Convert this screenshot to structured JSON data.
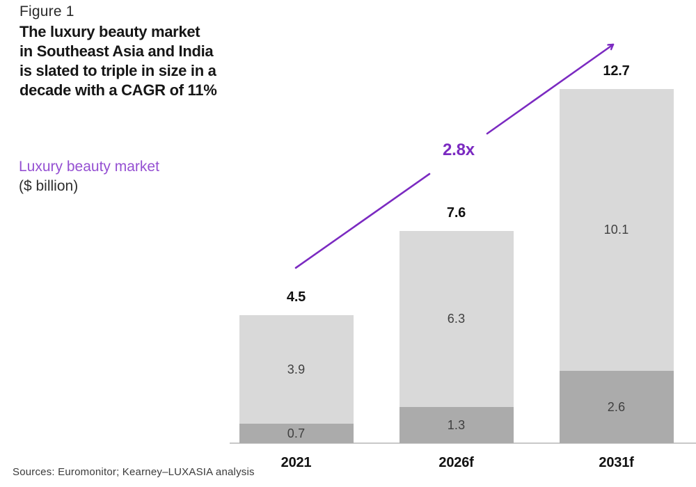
{
  "header": {
    "figure_label": "Figure 1",
    "title_lines": [
      "The luxury beauty market",
      "in Southeast Asia and India",
      "is slated to triple in size in a",
      "decade with a CAGR of 11%"
    ]
  },
  "y_axis_label": {
    "line1": "Luxury beauty market",
    "line2": "($ billion)"
  },
  "annotation": {
    "multiplier": "2.8x"
  },
  "source": "Sources: Euromonitor; Kearney–LUXASIA analysis",
  "colors": {
    "bar_light_gray": "#d9d9d9",
    "bar_dark_gray": "#ababab",
    "arrow_purple": "#7b2ac1",
    "label_purple": "#9550d2",
    "axis_line_gray": "#c8c8c8",
    "text_dark": "#161616"
  },
  "chart_data": {
    "type": "bar",
    "stacked": true,
    "title": "Luxury beauty market ($ billion)",
    "categories": [
      "2021",
      "2026f",
      "2031f"
    ],
    "series": [
      {
        "name": "bottom-segment-dark-gray",
        "values": [
          0.7,
          1.3,
          2.6
        ]
      },
      {
        "name": "top-segment-light-gray",
        "values": [
          3.9,
          6.3,
          10.1
        ]
      }
    ],
    "totals": [
      4.5,
      7.6,
      12.7
    ],
    "annotation": "2.8x growth from 2021 to 2031f",
    "xlabel": "",
    "ylabel": "$ billion",
    "grid": false,
    "legend": false
  }
}
